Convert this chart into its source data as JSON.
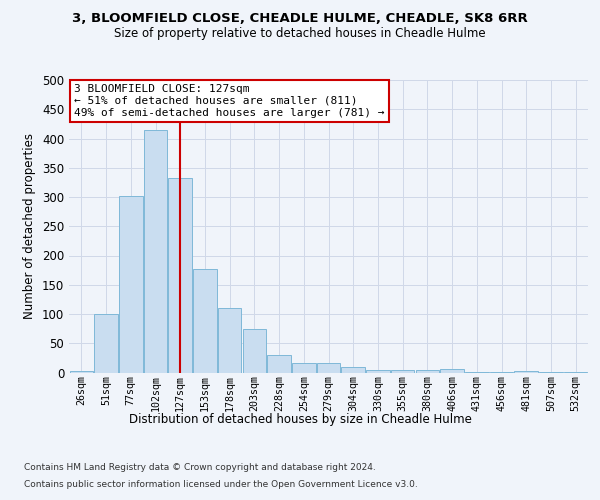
{
  "title1": "3, BLOOMFIELD CLOSE, CHEADLE HULME, CHEADLE, SK8 6RR",
  "title2": "Size of property relative to detached houses in Cheadle Hulme",
  "xlabel": "Distribution of detached houses by size in Cheadle Hulme",
  "ylabel": "Number of detached properties",
  "footer1": "Contains HM Land Registry data © Crown copyright and database right 2024.",
  "footer2": "Contains public sector information licensed under the Open Government Licence v3.0.",
  "categories": [
    "26sqm",
    "51sqm",
    "77sqm",
    "102sqm",
    "127sqm",
    "153sqm",
    "178sqm",
    "203sqm",
    "228sqm",
    "254sqm",
    "279sqm",
    "304sqm",
    "330sqm",
    "355sqm",
    "380sqm",
    "406sqm",
    "431sqm",
    "456sqm",
    "481sqm",
    "507sqm",
    "532sqm"
  ],
  "values": [
    3,
    100,
    302,
    415,
    332,
    177,
    111,
    75,
    30,
    16,
    16,
    10,
    4,
    4,
    4,
    6,
    1,
    1,
    3,
    1,
    1
  ],
  "bar_color": "#c9ddf0",
  "bar_edge_color": "#7fb8d8",
  "vline_x": 4,
  "vline_color": "#cc0000",
  "annotation_text": "3 BLOOMFIELD CLOSE: 127sqm\n← 51% of detached houses are smaller (811)\n49% of semi-detached houses are larger (781) →",
  "annotation_box_color": "#ffffff",
  "annotation_box_edge_color": "#cc0000",
  "ylim": [
    0,
    500
  ],
  "yticks": [
    0,
    50,
    100,
    150,
    200,
    250,
    300,
    350,
    400,
    450,
    500
  ],
  "grid_color": "#d0d8e8",
  "background_color": "#f0f4fa",
  "fig_width": 6.0,
  "fig_height": 5.0
}
